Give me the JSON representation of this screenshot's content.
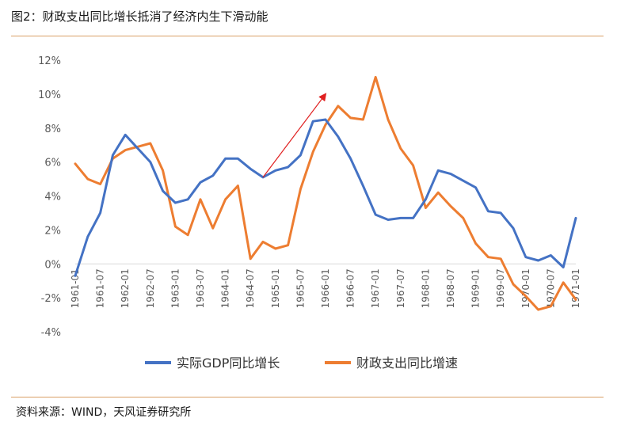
{
  "header": {
    "title": "图2：财政支出同比增长抵消了经济内生下滑动能"
  },
  "footer": {
    "source": "资料来源：WIND，天风证券研究所"
  },
  "colors": {
    "gdp": "#4472C4",
    "fiscal": "#ED7D31",
    "arrow": "#E02020",
    "zero_line": "#D9D9D9",
    "rule": "#D9A066"
  },
  "chart_data": {
    "type": "line",
    "xlabel": "",
    "ylabel": "",
    "ylim": [
      -4,
      12
    ],
    "yticks": [
      -4,
      -2,
      0,
      2,
      4,
      6,
      8,
      10,
      12
    ],
    "ytick_labels": [
      "-4%",
      "-2%",
      "0%",
      "2%",
      "4%",
      "6%",
      "8%",
      "10%",
      "12%"
    ],
    "xtick_labels": [
      "1961-01",
      "1961-07",
      "1962-01",
      "1962-07",
      "1963-01",
      "1963-07",
      "1964-01",
      "1964-07",
      "1965-01",
      "1965-07",
      "1966-01",
      "1966-07",
      "1967-01",
      "1967-07",
      "1968-01",
      "1968-07",
      "1969-01",
      "1969-07",
      "1970-01",
      "1970-07",
      "1971-01"
    ],
    "grid": false,
    "legend_position": "bottom",
    "x": [
      "1961-01",
      "1961-04",
      "1961-07",
      "1961-10",
      "1962-01",
      "1962-04",
      "1962-07",
      "1962-10",
      "1963-01",
      "1963-04",
      "1963-07",
      "1963-10",
      "1964-01",
      "1964-04",
      "1964-07",
      "1964-10",
      "1965-01",
      "1965-04",
      "1965-07",
      "1965-10",
      "1966-01",
      "1966-04",
      "1966-07",
      "1966-10",
      "1967-01",
      "1967-04",
      "1967-07",
      "1967-10",
      "1968-01",
      "1968-04",
      "1968-07",
      "1968-10",
      "1969-01",
      "1969-04",
      "1969-07",
      "1969-10",
      "1970-01",
      "1970-04",
      "1970-07",
      "1970-10",
      "1971-01"
    ],
    "series": [
      {
        "name": "实际GDP同比增长",
        "values": [
          -0.7,
          1.6,
          3.0,
          6.4,
          7.6,
          6.8,
          6.0,
          4.3,
          3.6,
          3.8,
          4.8,
          5.2,
          6.2,
          6.2,
          5.6,
          5.1,
          5.5,
          5.7,
          6.4,
          8.4,
          8.5,
          7.5,
          6.2,
          4.6,
          2.9,
          2.6,
          2.7,
          2.7,
          3.8,
          5.5,
          5.3,
          4.9,
          4.5,
          3.1,
          3.0,
          2.1,
          0.4,
          0.2,
          0.5,
          -0.2,
          2.7
        ]
      },
      {
        "name": "财政支出同比增速",
        "values": [
          5.9,
          5.0,
          4.7,
          6.2,
          6.7,
          6.9,
          7.1,
          5.5,
          2.2,
          1.7,
          3.8,
          2.1,
          3.8,
          4.6,
          0.3,
          1.3,
          0.9,
          1.1,
          4.4,
          6.6,
          8.2,
          9.3,
          8.6,
          8.5,
          11.0,
          8.5,
          6.8,
          5.8,
          3.3,
          4.2,
          3.4,
          2.7,
          1.2,
          0.4,
          0.3,
          -1.2,
          -1.9,
          -2.7,
          -2.5,
          -1.1,
          -2.1
        ]
      }
    ],
    "annotation": {
      "type": "arrow",
      "from": [
        "1964-10",
        5.1
      ],
      "to": [
        "1966-01",
        10.0
      ]
    }
  }
}
